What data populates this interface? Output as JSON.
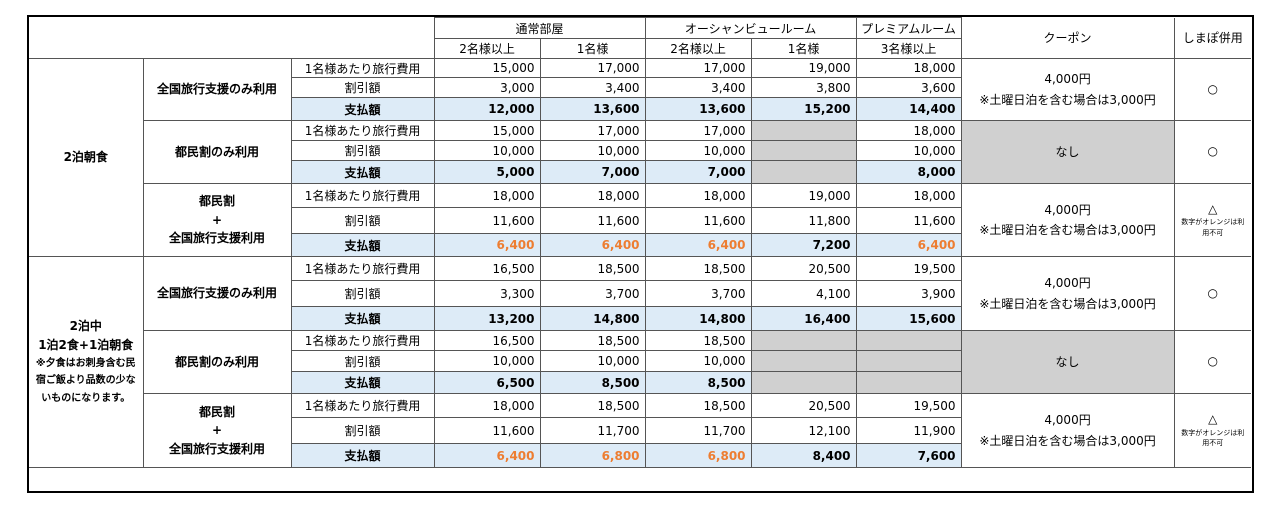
{
  "header": {
    "room_types": [
      "通常部屋",
      "オーシャンビュールーム",
      "プレミアムルーム"
    ],
    "occupancy": [
      "2名様以上",
      "1名様",
      "2名様以上",
      "1名様",
      "3名様以上"
    ],
    "coupon": "クーポン",
    "shimapo": "しまぽ併用"
  },
  "row_labels": {
    "cost": "1名様あたり旅行費用",
    "discount": "割引額",
    "pay": "支払額"
  },
  "stays": [
    {
      "title": "2泊朝食",
      "plans": [
        {
          "name_lines": [
            "全国旅行支援のみ利用"
          ],
          "cost": [
            "15,000",
            "17,000",
            "17,000",
            "19,000",
            "18,000"
          ],
          "discount": [
            "3,000",
            "3,400",
            "3,400",
            "3,800",
            "3,600"
          ],
          "pay": [
            "12,000",
            "13,600",
            "13,600",
            "15,200",
            "14,400"
          ],
          "coupon_lines": [
            "4,000円",
            "※土曜日泊を含む場合は3,000円"
          ],
          "shimapo": "○",
          "shimapo_note": ""
        },
        {
          "name_lines": [
            "都民割のみ利用"
          ],
          "cost": [
            "15,000",
            "17,000",
            "17,000",
            "",
            "18,000"
          ],
          "discount": [
            "10,000",
            "10,000",
            "10,000",
            "",
            "10,000"
          ],
          "pay": [
            "5,000",
            "7,000",
            "7,000",
            "",
            "8,000"
          ],
          "coupon_lines": [
            "なし"
          ],
          "shimapo": "○",
          "shimapo_note": ""
        },
        {
          "name_lines": [
            "都民割",
            "+",
            "全国旅行支援利用"
          ],
          "cost": [
            "18,000",
            "18,000",
            "18,000",
            "19,000",
            "18,000"
          ],
          "discount": [
            "11,600",
            "11,600",
            "11,600",
            "11,800",
            "11,600"
          ],
          "pay": [
            "6,400",
            "6,400",
            "6,400",
            "7,200",
            "6,400"
          ],
          "coupon_lines": [
            "4,000円",
            "※土曜日泊を含む場合は3,000円"
          ],
          "shimapo": "△",
          "shimapo_note": "数字がオレンジは利用不可"
        }
      ]
    },
    {
      "title_lines": [
        "2泊中",
        "1泊2食+1泊朝食"
      ],
      "note": "※夕食はお刺身含む民宿ご飯より品数の少ないものになります。",
      "plans": [
        {
          "name_lines": [
            "全国旅行支援のみ利用"
          ],
          "cost": [
            "16,500",
            "18,500",
            "18,500",
            "20,500",
            "19,500"
          ],
          "discount": [
            "3,300",
            "3,700",
            "3,700",
            "4,100",
            "3,900"
          ],
          "pay": [
            "13,200",
            "14,800",
            "14,800",
            "16,400",
            "15,600"
          ],
          "coupon_lines": [
            "4,000円",
            "※土曜日泊を含む場合は3,000円"
          ],
          "shimapo": "○",
          "shimapo_note": ""
        },
        {
          "name_lines": [
            "都民割のみ利用"
          ],
          "cost": [
            "16,500",
            "18,500",
            "18,500",
            "",
            ""
          ],
          "discount": [
            "10,000",
            "10,000",
            "10,000",
            "",
            ""
          ],
          "pay": [
            "6,500",
            "8,500",
            "8,500",
            "",
            ""
          ],
          "coupon_lines": [
            "なし"
          ],
          "shimapo": "○",
          "shimapo_note": ""
        },
        {
          "name_lines": [
            "都民割",
            "+",
            "全国旅行支援利用"
          ],
          "cost": [
            "18,000",
            "18,500",
            "18,500",
            "20,500",
            "19,500"
          ],
          "discount": [
            "11,600",
            "11,700",
            "11,700",
            "12,100",
            "11,900"
          ],
          "pay": [
            "6,400",
            "6,800",
            "6,800",
            "8,400",
            "7,600"
          ],
          "coupon_lines": [
            "4,000円",
            "※土曜日泊を含む場合は3,000円"
          ],
          "shimapo": "△",
          "shimapo_note": "数字がオレンジは利用不可"
        }
      ]
    }
  ],
  "colors": {
    "pay_row_background": "#ddebf7",
    "unavailable_cell": "#d0d0d0",
    "orange_value": "#ed7d31"
  },
  "orange_pay_cells": {
    "stay0_plan2": [
      0,
      1,
      2,
      4
    ],
    "stay1_plan2": [
      0,
      1,
      2
    ]
  }
}
